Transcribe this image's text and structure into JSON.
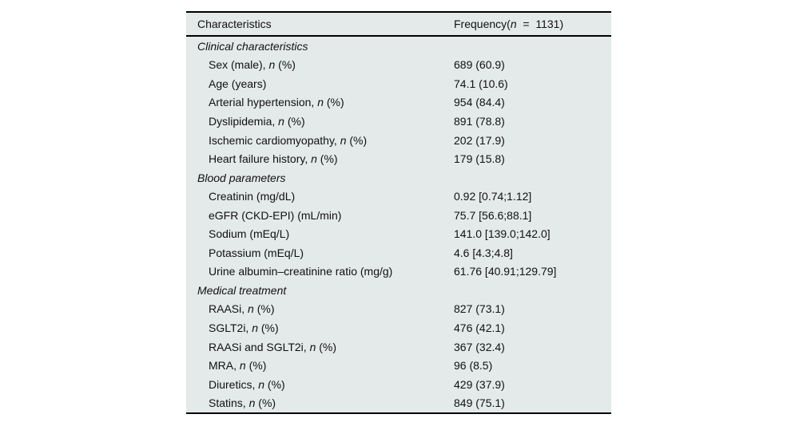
{
  "page": {
    "background_color": "#ffffff"
  },
  "table": {
    "background_color": "#e4e9e9",
    "rule_color": "#000000",
    "header": {
      "col1": "Characteristics",
      "col2_pre": "Frequency(",
      "col2_n": "n",
      "col2_post": "  =  1131)"
    },
    "rows": [
      {
        "type": "section",
        "label": "Clinical characteristics"
      },
      {
        "type": "data",
        "pre": "Sex (male), ",
        "n": "n",
        "post": " (%)",
        "value": "689 (60.9)"
      },
      {
        "type": "data",
        "pre": "Age (years)",
        "n": "",
        "post": "",
        "value": "74.1 (10.6)"
      },
      {
        "type": "data",
        "pre": "Arterial hypertension, ",
        "n": "n",
        "post": " (%)",
        "value": "954 (84.4)"
      },
      {
        "type": "data",
        "pre": "Dyslipidemia, ",
        "n": "n",
        "post": " (%)",
        "value": "891 (78.8)"
      },
      {
        "type": "data",
        "pre": "Ischemic cardiomyopathy, ",
        "n": "n",
        "post": " (%)",
        "value": "202 (17.9)"
      },
      {
        "type": "data",
        "pre": "Heart failure history, ",
        "n": "n",
        "post": " (%)",
        "value": "179 (15.8)"
      },
      {
        "type": "section",
        "label": "Blood parameters"
      },
      {
        "type": "data",
        "pre": "Creatinin (mg/dL)",
        "n": "",
        "post": "",
        "value": "0.92 [0.74;1.12]"
      },
      {
        "type": "data",
        "pre": "eGFR (CKD-EPI) (mL/min)",
        "n": "",
        "post": "",
        "value": "75.7 [56.6;88.1]"
      },
      {
        "type": "data",
        "pre": "Sodium (mEq/L)",
        "n": "",
        "post": "",
        "value": "141.0 [139.0;142.0]"
      },
      {
        "type": "data",
        "pre": "Potassium (mEq/L)",
        "n": "",
        "post": "",
        "value": "4.6 [4.3;4.8]"
      },
      {
        "type": "data",
        "pre": "Urine albumin–creatinine ratio (mg/g)",
        "n": "",
        "post": "",
        "value": "61.76 [40.91;129.79]"
      },
      {
        "type": "section",
        "label": "Medical treatment"
      },
      {
        "type": "data",
        "pre": "RAASi, ",
        "n": "n",
        "post": " (%)",
        "value": "827 (73.1)"
      },
      {
        "type": "data",
        "pre": "SGLT2i, ",
        "n": "n",
        "post": " (%)",
        "value": "476 (42.1)"
      },
      {
        "type": "data",
        "pre": "RAASi and SGLT2i, ",
        "n": "n",
        "post": " (%)",
        "value": "367 (32.4)"
      },
      {
        "type": "data",
        "pre": "MRA, ",
        "n": "n",
        "post": " (%)",
        "value": "96 (8.5)"
      },
      {
        "type": "data",
        "pre": "Diuretics, ",
        "n": "n",
        "post": " (%)",
        "value": "429 (37.9)"
      },
      {
        "type": "data",
        "pre": "Statins, ",
        "n": "n",
        "post": " (%)",
        "value": "849 (75.1)"
      }
    ]
  }
}
